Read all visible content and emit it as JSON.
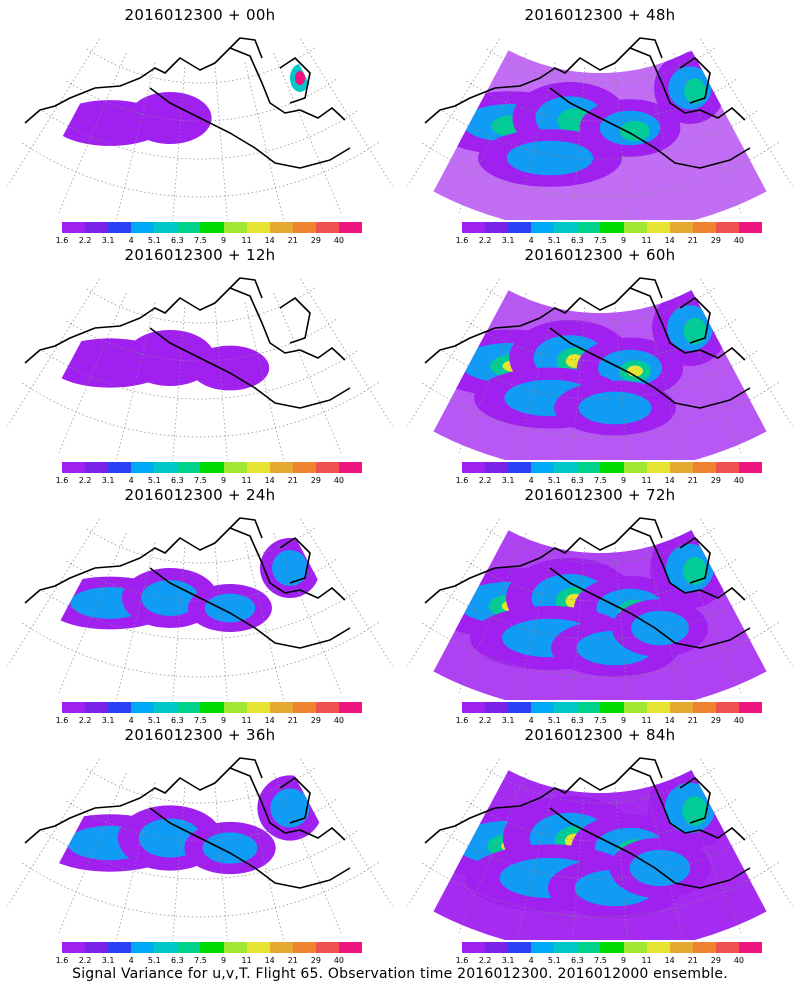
{
  "caption": "Signal Variance for u,v,T. Flight 65. Observation time 2016012300. 2016012000 ensemble.",
  "colorbar": {
    "labels": [
      "1.6",
      "2.2",
      "3.1",
      "4",
      "5.1",
      "6.3",
      "7.5",
      "9",
      "11",
      "14",
      "21",
      "29",
      "40"
    ],
    "colors": [
      "#a020f0",
      "#7b22e8",
      "#2a40f5",
      "#00aaf5",
      "#00c8c8",
      "#00d28c",
      "#00dc00",
      "#a0e632",
      "#e6e632",
      "#e6aa32",
      "#f08230",
      "#f05050",
      "#f01480"
    ]
  },
  "panels": [
    {
      "title": "2016012300 + 00h",
      "level": 0.05
    },
    {
      "title": "2016012300 + 48h",
      "level": 0.55
    },
    {
      "title": "2016012300 + 12h",
      "level": 0.15
    },
    {
      "title": "2016012300 + 60h",
      "level": 0.65
    },
    {
      "title": "2016012300 + 24h",
      "level": 0.25
    },
    {
      "title": "2016012300 + 72h",
      "level": 0.75
    },
    {
      "title": "2016012300 + 36h",
      "level": 0.38
    },
    {
      "title": "2016012300 + 84h",
      "level": 0.85
    }
  ]
}
